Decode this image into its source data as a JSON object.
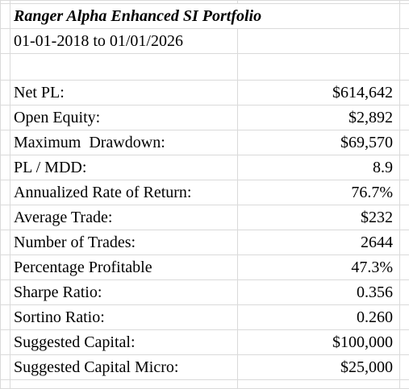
{
  "header": {
    "title": "Ranger Alpha Enhanced SI Portfolio",
    "subtitle": "01-01-2018 to 01/01/2026"
  },
  "table": {
    "rows": [
      [
        "Net PL:",
        "$614,642"
      ],
      [
        "Open Equity:",
        "$2,892"
      ],
      [
        "Maximum  Drawdown:",
        "$69,570"
      ],
      [
        "PL / MDD:",
        "8.9"
      ],
      [
        "Annualized Rate of Return:",
        "76.7%"
      ],
      [
        "Average Trade:",
        "$232"
      ],
      [
        "Number of Trades:",
        "2644"
      ],
      [
        "Percentage Profitable",
        "47.3%"
      ],
      [
        "Sharpe Ratio:",
        "0.356"
      ],
      [
        "Sortino Ratio:",
        "0.260"
      ],
      [
        "Suggested Capital:",
        "$100,000"
      ],
      [
        "Suggested Capital Micro:",
        "$25,000"
      ]
    ]
  }
}
